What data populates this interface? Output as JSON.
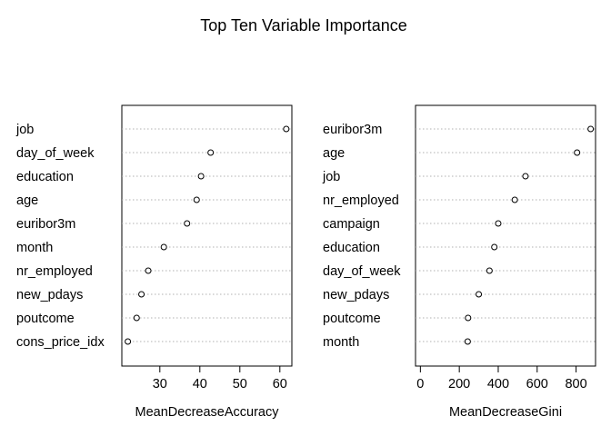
{
  "title": "Top Ten Variable Importance",
  "chart_data": [
    {
      "type": "scatter",
      "variant": "dotchart",
      "xlabel": "MeanDecreaseAccuracy",
      "ylabel": "",
      "xlim": [
        20.5,
        63
      ],
      "xticks": [
        30,
        40,
        50,
        60
      ],
      "grid": "dotted horizontal lines",
      "categories": [
        "job",
        "day_of_week",
        "education",
        "age",
        "euribor3m",
        "month",
        "nr_employed",
        "new_pdays",
        "poutcome",
        "cons_price_idx"
      ],
      "values": [
        61.6,
        42.7,
        40.3,
        39.2,
        36.8,
        31.0,
        27.1,
        25.4,
        24.2,
        22.0
      ]
    },
    {
      "type": "scatter",
      "variant": "dotchart",
      "xlabel": "MeanDecreaseGini",
      "ylabel": "",
      "xlim": [
        -25,
        900
      ],
      "xticks": [
        0,
        200,
        400,
        600,
        800
      ],
      "grid": "dotted horizontal lines",
      "categories": [
        "euribor3m",
        "age",
        "job",
        "nr_employed",
        "campaign",
        "education",
        "day_of_week",
        "new_pdays",
        "poutcome",
        "month"
      ],
      "values": [
        875,
        805,
        540,
        485,
        400,
        380,
        355,
        300,
        245,
        243
      ]
    }
  ]
}
